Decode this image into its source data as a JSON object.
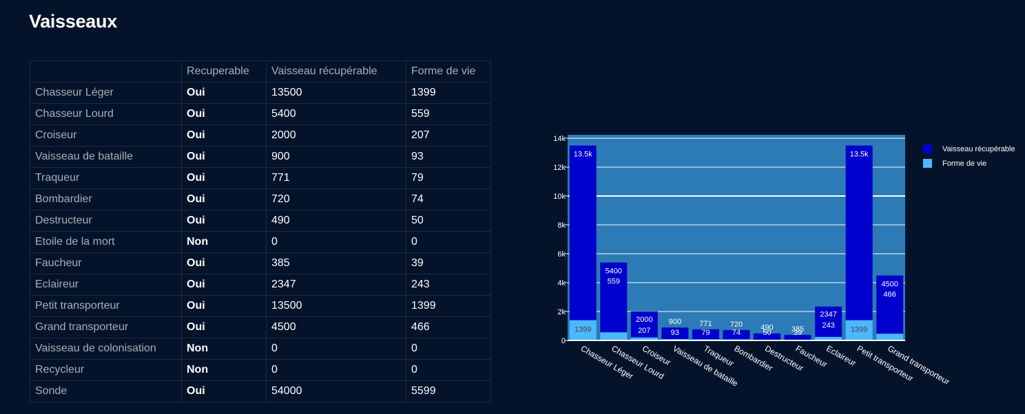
{
  "page": {
    "title": "Vaisseaux"
  },
  "table": {
    "columns": [
      "",
      "Recuperable",
      "Vaisseau récupérable",
      "Forme de vie"
    ],
    "rows": [
      {
        "name": "Chasseur Léger",
        "recuperable": "Oui",
        "vaisseau": "13500",
        "forme": "1399"
      },
      {
        "name": "Chasseur Lourd",
        "recuperable": "Oui",
        "vaisseau": "5400",
        "forme": "559"
      },
      {
        "name": "Croiseur",
        "recuperable": "Oui",
        "vaisseau": "2000",
        "forme": "207"
      },
      {
        "name": "Vaisseau de bataille",
        "recuperable": "Oui",
        "vaisseau": "900",
        "forme": "93"
      },
      {
        "name": "Traqueur",
        "recuperable": "Oui",
        "vaisseau": "771",
        "forme": "79"
      },
      {
        "name": "Bombardier",
        "recuperable": "Oui",
        "vaisseau": "720",
        "forme": "74"
      },
      {
        "name": "Destructeur",
        "recuperable": "Oui",
        "vaisseau": "490",
        "forme": "50"
      },
      {
        "name": "Etoile de la mort",
        "recuperable": "Non",
        "vaisseau": "0",
        "forme": "0"
      },
      {
        "name": "Faucheur",
        "recuperable": "Oui",
        "vaisseau": "385",
        "forme": "39"
      },
      {
        "name": "Eclaireur",
        "recuperable": "Oui",
        "vaisseau": "2347",
        "forme": "243"
      },
      {
        "name": "Petit transporteur",
        "recuperable": "Oui",
        "vaisseau": "13500",
        "forme": "1399"
      },
      {
        "name": "Grand transporteur",
        "recuperable": "Oui",
        "vaisseau": "4500",
        "forme": "466"
      },
      {
        "name": "Vaisseau de colonisation",
        "recuperable": "Non",
        "vaisseau": "0",
        "forme": "0"
      },
      {
        "name": "Recycleur",
        "recuperable": "Non",
        "vaisseau": "0",
        "forme": "0"
      },
      {
        "name": "Sonde",
        "recuperable": "Oui",
        "vaisseau": "54000",
        "forme": "5599"
      }
    ]
  },
  "chart_data": {
    "type": "bar",
    "barmode": "overlay",
    "title": "",
    "xlabel": "",
    "ylabel": "",
    "categories": [
      "Chasseur Léger",
      "Chasseur Lourd",
      "Croiseur",
      "Vaisseau de bataille",
      "Traqueur",
      "Bombardier",
      "Destructeur",
      "Faucheur",
      "Eclaireur",
      "Petit transporteur",
      "Grand transporteur"
    ],
    "series": [
      {
        "name": "Vaisseau récupérable",
        "color": "#0000cd",
        "values": [
          13500,
          5400,
          2000,
          900,
          771,
          720,
          490,
          385,
          2347,
          13500,
          4500
        ],
        "labels": [
          "13.5k",
          "5400",
          "2000",
          "900",
          "771",
          "720",
          "490",
          "385",
          "2347",
          "13.5k",
          "4500"
        ]
      },
      {
        "name": "Forme de vie",
        "color": "#4db8ff",
        "values": [
          1399,
          559,
          207,
          93,
          79,
          74,
          50,
          39,
          243,
          1399,
          466
        ],
        "labels": [
          "1399",
          "559",
          "207",
          "93",
          "79",
          "74",
          "50",
          "39",
          "243",
          "1399",
          "466"
        ]
      }
    ],
    "ylim": [
      0,
      14000
    ],
    "yticks": [
      0,
      2000,
      4000,
      6000,
      8000,
      10000,
      12000,
      14000
    ],
    "ytick_labels": [
      "0",
      "2k",
      "4k",
      "6k",
      "8k",
      "10k",
      "12k",
      "14k"
    ],
    "grid": true,
    "plot_bgcolor": "#2c7bb6",
    "legend_position": "top-right"
  }
}
